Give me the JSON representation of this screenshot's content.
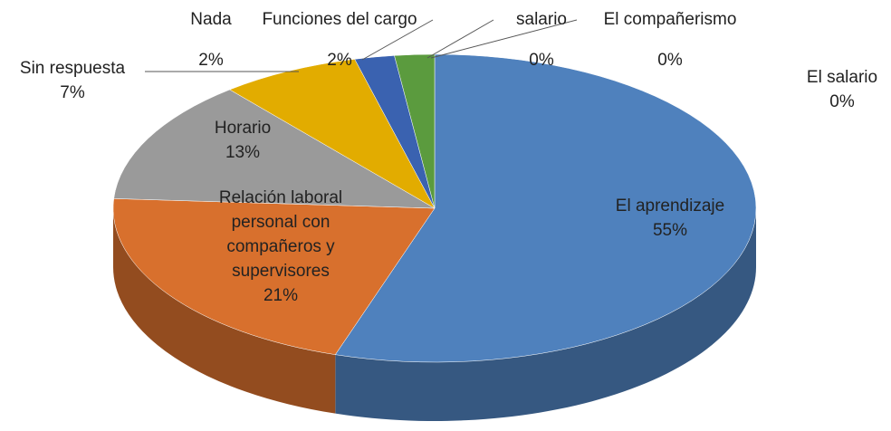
{
  "chart_data": {
    "type": "pie",
    "categories": [
      "El aprendizaje",
      "Relación laboral personal con compañeros y supervisores",
      "Horario",
      "Sin respuesta",
      "Nada",
      "Funciones del cargo",
      "salario",
      "El compañerismo",
      "El salario"
    ],
    "values": [
      55,
      21,
      13,
      7,
      2,
      2,
      0,
      0,
      0
    ],
    "value_labels": [
      "55%",
      "21%",
      "13%",
      "7%",
      "2%",
      "2%",
      "0%",
      "0%",
      "0%"
    ],
    "colors": [
      "#4f81bd",
      "#d8702d",
      "#9a9a9a",
      "#e2ac00",
      "#3a62b0",
      "#5b9b3e",
      "#9cc4e8",
      "#e8a4a4",
      "#c9a0d8"
    ]
  }
}
